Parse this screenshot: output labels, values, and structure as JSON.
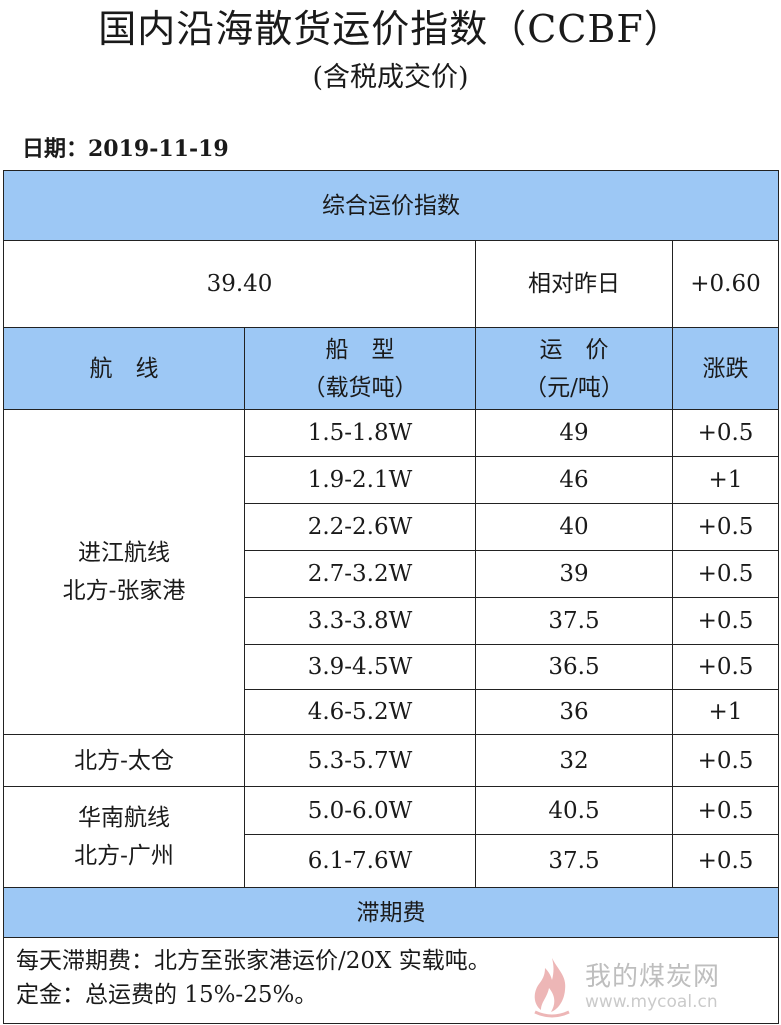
{
  "title": "国内沿海散货运价指数（CCBF）",
  "subtitle": "(含税成交价)",
  "date_label": "日期：2019-11-19",
  "composite": {
    "header": "综合运价指数",
    "value": "39.40",
    "compare_label": "相对昨日",
    "change": "+0.60"
  },
  "columns": {
    "route": "航　线",
    "ship_type_line1": "船　型",
    "ship_type_line2": "（载货吨）",
    "price_line1": "运　价",
    "price_line2": "（元/吨）",
    "change": "涨跌"
  },
  "routes": [
    {
      "name_line1": "进江航线",
      "name_line2": "北方-张家港",
      "rows": [
        {
          "ship": "1.5-1.8W",
          "price": "49",
          "change": "+0.5"
        },
        {
          "ship": "1.9-2.1W",
          "price": "46",
          "change": "+1"
        },
        {
          "ship": "2.2-2.6W",
          "price": "40",
          "change": "+0.5"
        },
        {
          "ship": "2.7-3.2W",
          "price": "39",
          "change": "+0.5"
        },
        {
          "ship": "3.3-3.8W",
          "price": "37.5",
          "change": "+0.5"
        },
        {
          "ship": "3.9-4.5W",
          "price": "36.5",
          "change": "+0.5"
        },
        {
          "ship": "4.6-5.2W",
          "price": "36",
          "change": "+1"
        }
      ]
    },
    {
      "name_line1": "北方-太仓",
      "rows": [
        {
          "ship": "5.3-5.7W",
          "price": "32",
          "change": "+0.5"
        }
      ]
    },
    {
      "name_line1": "华南航线",
      "name_line2": "北方-广州",
      "rows": [
        {
          "ship": "5.0-6.0W",
          "price": "40.5",
          "change": "+0.5"
        },
        {
          "ship": "6.1-7.6W",
          "price": "37.5",
          "change": "+0.5"
        }
      ]
    }
  ],
  "demurrage": {
    "header": "滞期费",
    "line1": "每天滞期费：北方至张家港运价/20X 实载吨。",
    "line2": "定金：总运费的 15%-25%。"
  },
  "watermark": {
    "text": "我的煤炭网",
    "url": "www.mycoal.cn",
    "icon": "flame-logo-icon",
    "color": "#d04040"
  }
}
